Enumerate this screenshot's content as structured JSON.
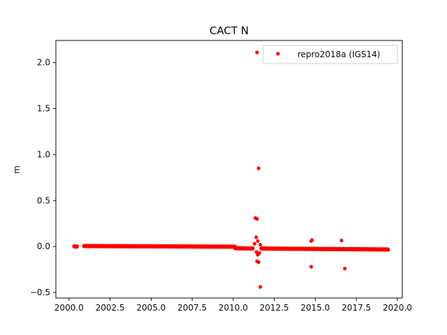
{
  "chart_data": {
    "type": "scatter",
    "title": "CACT N",
    "xlabel": "",
    "ylabel": "m",
    "xlim": [
      1999.2,
      2020.3
    ],
    "ylim": [
      -0.56,
      2.24
    ],
    "xticks": [
      2000.0,
      2002.5,
      2005.0,
      2007.5,
      2010.0,
      2012.5,
      2015.0,
      2017.5,
      2020.0
    ],
    "xtick_labels": [
      "2000.0",
      "2002.5",
      "2005.0",
      "2007.5",
      "2010.0",
      "2012.5",
      "2015.0",
      "2017.5",
      "2020.0"
    ],
    "yticks": [
      -0.5,
      0.0,
      0.5,
      1.0,
      1.5,
      2.0
    ],
    "ytick_labels": [
      "−0.5",
      "0.0",
      "0.5",
      "1.0",
      "1.5",
      "2.0"
    ],
    "grid": false,
    "legend_position": "top-right",
    "series": [
      {
        "name": "repro2018a (IGS14)",
        "color": "#ff0000",
        "marker": "circle",
        "segments": [
          {
            "x_start": 2000.3,
            "x_end": 2000.5,
            "y_start": 0.0,
            "y_end": 0.0
          },
          {
            "x_start": 2000.9,
            "x_end": 2010.1,
            "y_start": 0.005,
            "y_end": -0.002
          },
          {
            "x_start": 2010.1,
            "x_end": 2011.2,
            "y_start": -0.018,
            "y_end": -0.022
          },
          {
            "x_start": 2011.7,
            "x_end": 2019.45,
            "y_start": -0.022,
            "y_end": -0.032
          }
        ],
        "outliers": [
          {
            "x": 2011.45,
            "y": 2.11
          },
          {
            "x": 2011.55,
            "y": 0.85
          },
          {
            "x": 2011.35,
            "y": 0.31
          },
          {
            "x": 2011.45,
            "y": 0.3
          },
          {
            "x": 2011.4,
            "y": 0.1
          },
          {
            "x": 2011.5,
            "y": 0.06
          },
          {
            "x": 2011.3,
            "y": 0.03
          },
          {
            "x": 2011.65,
            "y": 0.02
          },
          {
            "x": 2011.42,
            "y": -0.06
          },
          {
            "x": 2011.5,
            "y": -0.09
          },
          {
            "x": 2011.6,
            "y": -0.07
          },
          {
            "x": 2011.45,
            "y": -0.16
          },
          {
            "x": 2011.55,
            "y": -0.17
          },
          {
            "x": 2011.65,
            "y": -0.44
          },
          {
            "x": 2014.75,
            "y": 0.06
          },
          {
            "x": 2014.8,
            "y": 0.07
          },
          {
            "x": 2014.75,
            "y": -0.22
          },
          {
            "x": 2016.6,
            "y": 0.065
          },
          {
            "x": 2016.8,
            "y": -0.24
          }
        ]
      }
    ]
  }
}
